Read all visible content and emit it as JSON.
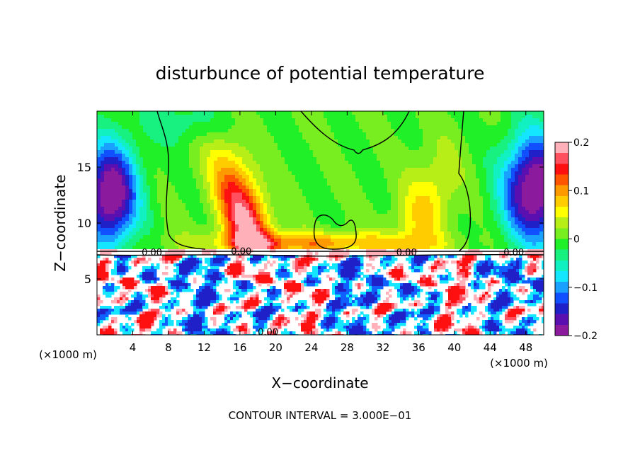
{
  "chart_data": {
    "type": "heatmap",
    "title": "disturbunce of potential temperature",
    "xlabel": "X−coordinate",
    "ylabel": "Z−coordinate",
    "x_unit_left": "(×1000 m)",
    "x_unit_right": "(×1000 m)",
    "xlim": [
      0,
      50
    ],
    "ylim": [
      0,
      20
    ],
    "x_ticks": [
      4,
      8,
      12,
      16,
      20,
      24,
      28,
      32,
      36,
      40,
      44,
      48
    ],
    "y_ticks": [
      5,
      10,
      15
    ],
    "colorbar": {
      "range": [
        -0.2,
        0.2
      ],
      "tick_values": [
        -0.2,
        -0.1,
        0,
        0.1,
        0.2
      ],
      "tick_labels": [
        "−0.2",
        "−0.1",
        "0",
        "0.1",
        "0.2"
      ],
      "colors": [
        "#8b1a9c",
        "#5a0fb0",
        "#2020c8",
        "#1050ff",
        "#1aa0ff",
        "#14e6ff",
        "#10f0c0",
        "#18f080",
        "#20f028",
        "#78ee20",
        "#b8ee18",
        "#ffff00",
        "#ffcc00",
        "#ff9900",
        "#ff5500",
        "#ff1010",
        "#ff5060",
        "#ffb0b8"
      ]
    },
    "contour_labels": [
      "0.00",
      "0.00",
      "0.00",
      "0.00",
      "0.00"
    ],
    "footer": "CONTOUR INTERVAL = 3.000E−01"
  }
}
